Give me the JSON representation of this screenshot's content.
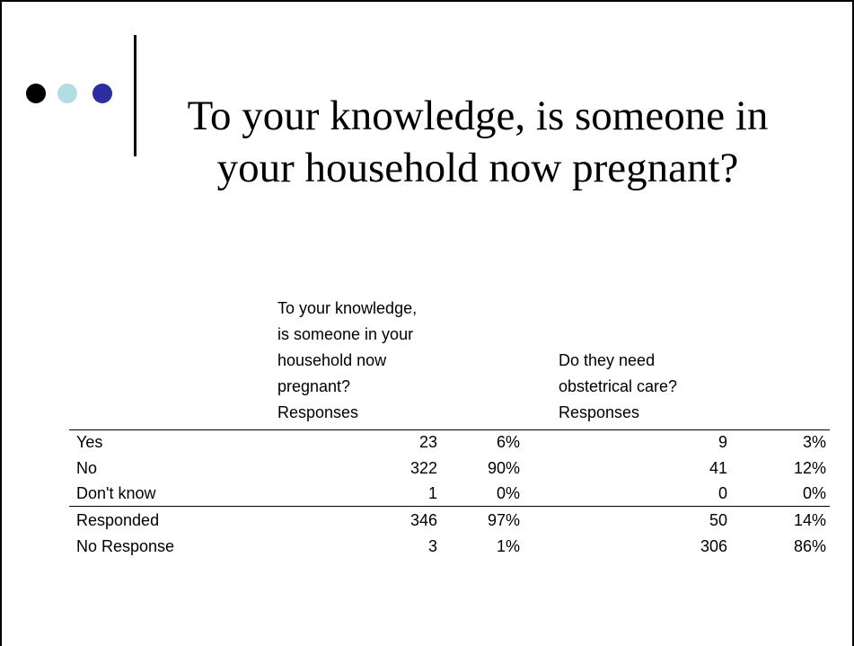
{
  "header": {
    "title": "To your knowledge, is someone in your household now pregnant?"
  },
  "table": {
    "columns": [
      {
        "question": "To your knowledge, is someone in your household now pregnant?",
        "label": "Responses"
      },
      {
        "question": "Do they need obstetrical care?",
        "label": "Responses"
      }
    ],
    "rows": [
      [
        "Yes",
        23,
        "6%",
        9,
        "3%"
      ],
      [
        "No",
        322,
        "90%",
        41,
        "12%"
      ],
      [
        "Don't know",
        1,
        "0%",
        0,
        "0%"
      ],
      [
        "Responded",
        346,
        "97%",
        50,
        "14%"
      ],
      [
        "No Response",
        3,
        "1%",
        306,
        "86%"
      ]
    ]
  }
}
